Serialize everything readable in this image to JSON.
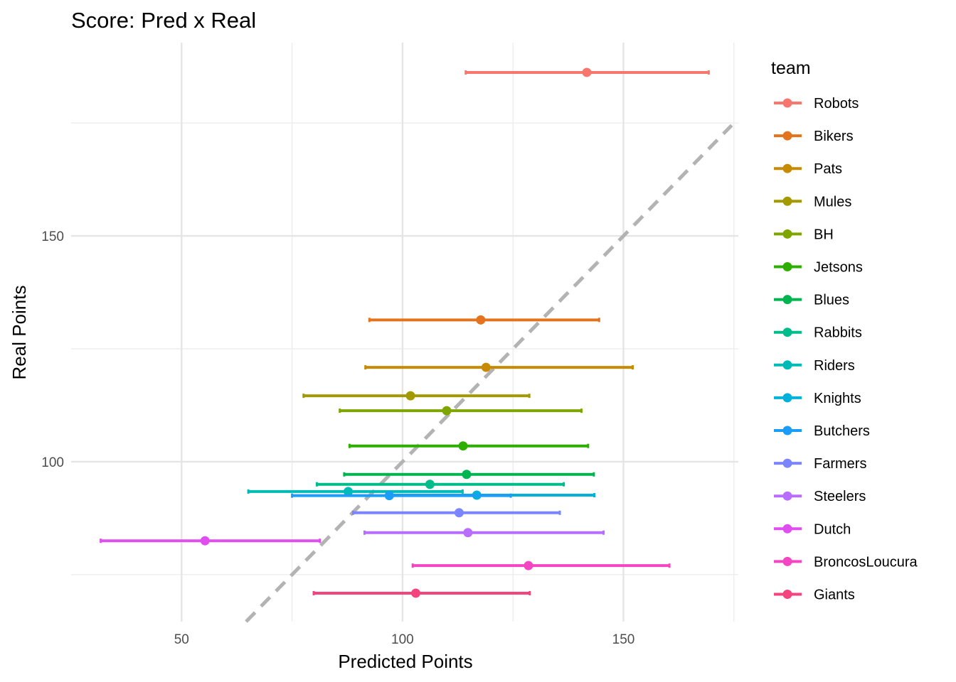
{
  "chart_data": {
    "type": "scatter",
    "title": "Score: Pred x Real",
    "xlabel": "Predicted Points",
    "ylabel": "Real Points",
    "xlim": [
      25,
      176
    ],
    "ylim": [
      64.6,
      192.8
    ],
    "x_ticks": [
      50,
      100,
      150
    ],
    "y_ticks": [
      100,
      150
    ],
    "x_ticks_minor": [
      75,
      125,
      175
    ],
    "y_ticks_minor": [
      75,
      125,
      175
    ],
    "grid": true,
    "reference_line": {
      "type": "identity",
      "style": "dashed",
      "color": "#b3b3b3"
    },
    "legend": {
      "title": "team",
      "placement": "right"
    },
    "series": [
      {
        "name": "Robots",
        "color": "#F8766D",
        "x": 141.7,
        "y": 186.2,
        "xmin": 114.3,
        "xmax": 169.3
      },
      {
        "name": "Bikers",
        "color": "#E3731C",
        "x": 117.7,
        "y": 131.4,
        "xmin": 92.5,
        "xmax": 144.5
      },
      {
        "name": "Pats",
        "color": "#C88A00",
        "x": 118.9,
        "y": 120.9,
        "xmin": 91.6,
        "xmax": 152.1
      },
      {
        "name": "Mules",
        "color": "#A39A00",
        "x": 101.8,
        "y": 114.6,
        "xmin": 77.6,
        "xmax": 128.7
      },
      {
        "name": "BH",
        "color": "#7FA600",
        "x": 110.0,
        "y": 111.3,
        "xmin": 85.8,
        "xmax": 140.5
      },
      {
        "name": "Jetsons",
        "color": "#2EAF00",
        "x": 113.7,
        "y": 103.5,
        "xmin": 88.0,
        "xmax": 142.0
      },
      {
        "name": "Blues",
        "color": "#00B550",
        "x": 114.5,
        "y": 97.2,
        "xmin": 86.8,
        "xmax": 143.3
      },
      {
        "name": "Rabbits",
        "color": "#00BB8A",
        "x": 106.2,
        "y": 95.0,
        "xmin": 80.6,
        "xmax": 136.5
      },
      {
        "name": "Riders",
        "color": "#00BBB5",
        "x": 87.7,
        "y": 93.4,
        "xmin": 65.1,
        "xmax": 113.6
      },
      {
        "name": "Knights",
        "color": "#00B2DA",
        "x": 116.8,
        "y": 92.6,
        "xmin": 96.9,
        "xmax": 143.4
      },
      {
        "name": "Butchers",
        "color": "#1A9CF7",
        "x": 97.0,
        "y": 92.5,
        "xmin": 75.0,
        "xmax": 124.5
      },
      {
        "name": "Farmers",
        "color": "#7B85FF",
        "x": 112.8,
        "y": 88.7,
        "xmin": 88.8,
        "xmax": 135.6
      },
      {
        "name": "Steelers",
        "color": "#B76EFF",
        "x": 114.8,
        "y": 84.3,
        "xmin": 91.4,
        "xmax": 145.5
      },
      {
        "name": "Dutch",
        "color": "#E04EEF",
        "x": 55.3,
        "y": 82.5,
        "xmin": 31.7,
        "xmax": 81.3
      },
      {
        "name": "BroncosLoucura",
        "color": "#F346C3",
        "x": 128.5,
        "y": 77.0,
        "xmin": 102.3,
        "xmax": 160.4
      },
      {
        "name": "Giants",
        "color": "#F5437E",
        "x": 103.0,
        "y": 70.9,
        "xmin": 79.9,
        "xmax": 128.8
      }
    ]
  }
}
